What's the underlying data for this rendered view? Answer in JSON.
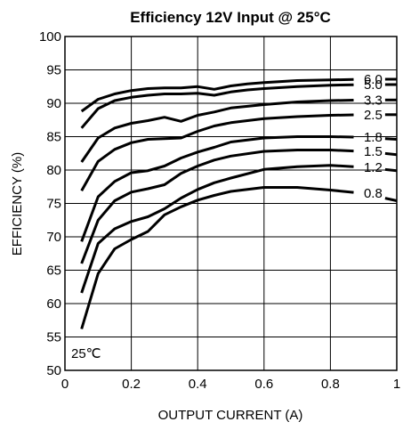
{
  "chart_data": {
    "type": "line",
    "title": "Efficiency 12V Input @ 25°C",
    "xlabel": "OUTPUT CURRENT (A)",
    "ylabel": "EFFICIENCY (%)",
    "xlim": [
      0,
      1
    ],
    "ylim": [
      50,
      100
    ],
    "x_ticks": [
      "0",
      "0.2",
      "0.4",
      "0.6",
      "0.8",
      "1"
    ],
    "y_ticks": [
      "50",
      "55",
      "60",
      "65",
      "70",
      "75",
      "80",
      "85",
      "90",
      "95",
      "100"
    ],
    "grid": true,
    "annotation": "25℃",
    "series": [
      {
        "name": "6.0",
        "x": [
          0.05,
          0.1,
          0.15,
          0.2,
          0.25,
          0.3,
          0.35,
          0.4,
          0.45,
          0.5,
          0.55,
          0.6,
          0.7,
          0.8,
          0.9,
          1.0
        ],
        "y": [
          88.8,
          90.6,
          91.4,
          91.9,
          92.2,
          92.3,
          92.3,
          92.5,
          92.1,
          92.6,
          92.9,
          93.1,
          93.4,
          93.5,
          93.6,
          93.6
        ]
      },
      {
        "name": "5.0",
        "x": [
          0.05,
          0.1,
          0.15,
          0.2,
          0.25,
          0.3,
          0.35,
          0.4,
          0.45,
          0.5,
          0.55,
          0.6,
          0.7,
          0.8,
          0.9,
          1.0
        ],
        "y": [
          86.3,
          89.2,
          90.4,
          90.9,
          91.2,
          91.4,
          91.4,
          91.5,
          91.2,
          91.7,
          92.0,
          92.2,
          92.5,
          92.7,
          92.8,
          92.8
        ]
      },
      {
        "name": "3.3",
        "x": [
          0.05,
          0.1,
          0.15,
          0.2,
          0.25,
          0.3,
          0.35,
          0.4,
          0.45,
          0.5,
          0.6,
          0.7,
          0.8,
          0.9,
          1.0
        ],
        "y": [
          81.2,
          84.8,
          86.3,
          87.0,
          87.4,
          87.9,
          87.3,
          88.2,
          88.7,
          89.3,
          89.8,
          90.2,
          90.4,
          90.5,
          90.5
        ]
      },
      {
        "name": "2.5",
        "x": [
          0.05,
          0.1,
          0.15,
          0.2,
          0.25,
          0.3,
          0.35,
          0.4,
          0.45,
          0.5,
          0.6,
          0.7,
          0.8,
          0.9,
          1.0
        ],
        "y": [
          76.9,
          81.3,
          83.1,
          84.1,
          84.6,
          84.7,
          84.8,
          85.8,
          86.6,
          87.1,
          87.7,
          88.0,
          88.2,
          88.3,
          88.3
        ]
      },
      {
        "name": "1.8",
        "x": [
          0.05,
          0.1,
          0.15,
          0.2,
          0.25,
          0.3,
          0.35,
          0.4,
          0.45,
          0.5,
          0.6,
          0.7,
          0.8,
          0.9,
          1.0
        ],
        "y": [
          69.3,
          76.0,
          78.3,
          79.6,
          79.9,
          80.6,
          81.8,
          82.7,
          83.4,
          84.2,
          84.8,
          85.0,
          85.0,
          84.9,
          84.6
        ]
      },
      {
        "name": "1.5",
        "x": [
          0.05,
          0.1,
          0.15,
          0.2,
          0.25,
          0.3,
          0.35,
          0.4,
          0.45,
          0.5,
          0.6,
          0.7,
          0.8,
          0.9,
          1.0
        ],
        "y": [
          66.0,
          72.5,
          75.4,
          76.7,
          77.2,
          77.8,
          79.5,
          80.6,
          81.5,
          82.1,
          82.8,
          83.0,
          83.0,
          82.8,
          82.3
        ]
      },
      {
        "name": "1.2",
        "x": [
          0.05,
          0.1,
          0.15,
          0.2,
          0.25,
          0.3,
          0.35,
          0.4,
          0.45,
          0.5,
          0.6,
          0.7,
          0.8,
          0.9,
          1.0
        ],
        "y": [
          61.6,
          69.0,
          71.2,
          72.3,
          73.0,
          74.2,
          75.8,
          77.1,
          78.1,
          78.8,
          80.1,
          80.5,
          80.7,
          80.4,
          79.9
        ]
      },
      {
        "name": "0.8",
        "x": [
          0.05,
          0.1,
          0.15,
          0.2,
          0.25,
          0.3,
          0.35,
          0.4,
          0.45,
          0.5,
          0.6,
          0.7,
          0.8,
          0.9,
          1.0
        ],
        "y": [
          56.2,
          64.5,
          68.2,
          69.6,
          70.8,
          73.3,
          74.5,
          75.5,
          76.2,
          76.8,
          77.4,
          77.4,
          77.0,
          76.5,
          75.4
        ]
      }
    ]
  }
}
